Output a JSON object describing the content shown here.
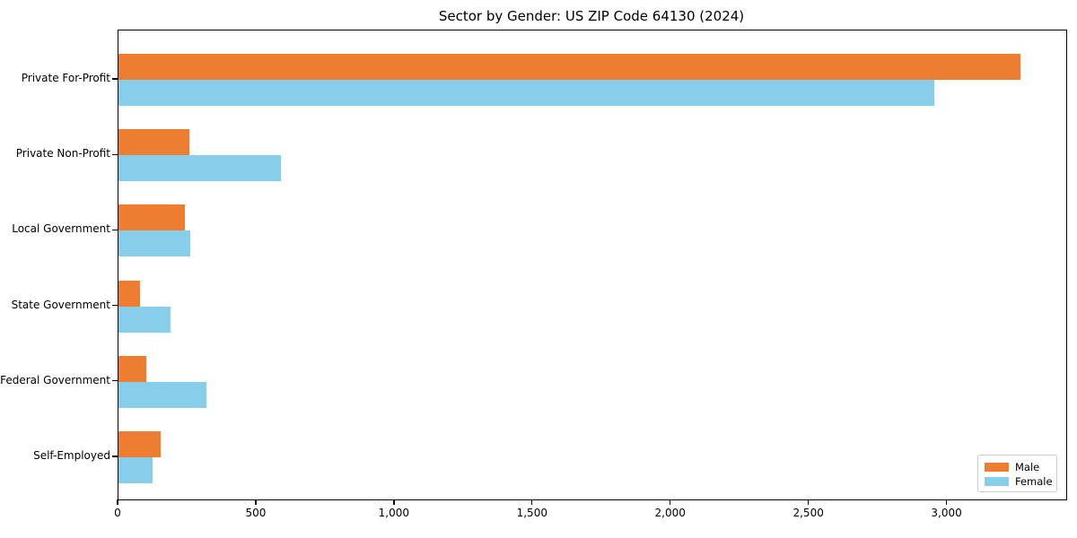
{
  "title": "Sector by Gender: US ZIP Code 64130 (2024)",
  "colors": {
    "male": "#ed7d31",
    "female": "#87ceeb",
    "spine": "#000000",
    "legend_border": "#cccccc",
    "background": "#ffffff"
  },
  "chart_data": {
    "type": "bar",
    "orientation": "horizontal",
    "title": "Sector by Gender: US ZIP Code 64130 (2024)",
    "categories": [
      "Private For-Profit",
      "Private Non-Profit",
      "Local Government",
      "State Government",
      "Federal Government",
      "Self-Employed"
    ],
    "series": [
      {
        "name": "Male",
        "color": "#ed7d31",
        "values": [
          3264,
          256,
          240,
          79,
          101,
          154
        ]
      },
      {
        "name": "Female",
        "color": "#87ceeb",
        "values": [
          2952,
          588,
          260,
          189,
          318,
          124
        ]
      }
    ],
    "xlabel": "",
    "ylabel": "",
    "xlim": [
      0,
      3430
    ],
    "xticks": [
      0,
      500,
      1000,
      1500,
      2000,
      2500,
      3000
    ],
    "xtick_labels": [
      "0",
      "500",
      "1,000",
      "1,500",
      "2,000",
      "2,500",
      "3,000"
    ],
    "grid": false,
    "legend": {
      "position": "lower right",
      "entries": [
        {
          "label": "Male",
          "color": "#ed7d31"
        },
        {
          "label": "Female",
          "color": "#87ceeb"
        }
      ]
    }
  }
}
